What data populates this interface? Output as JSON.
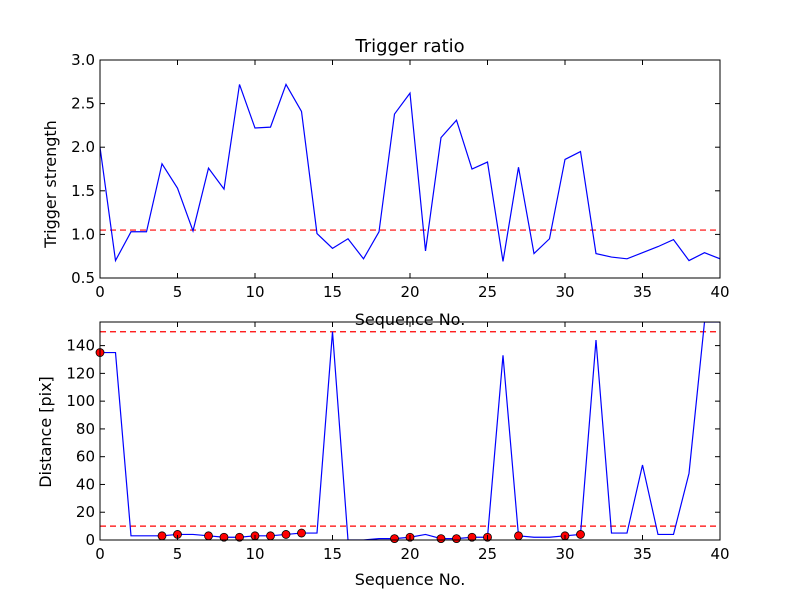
{
  "chart_data": [
    {
      "type": "line",
      "title": "Trigger ratio",
      "xlabel": "Sequence No.",
      "ylabel": "Trigger strength",
      "xlim": [
        0,
        40
      ],
      "ylim": [
        0.5,
        3.0
      ],
      "xticks": [
        "0",
        "5",
        "10",
        "15",
        "20",
        "25",
        "30",
        "35",
        "40"
      ],
      "yticks": [
        "0.5",
        "1.0",
        "1.5",
        "2.0",
        "2.5",
        "3.0"
      ],
      "grid": false,
      "series": [
        {
          "color": "#0000ff",
          "x": [
            0,
            1,
            2,
            3,
            4,
            5,
            6,
            7,
            8,
            9,
            10,
            11,
            12,
            13,
            14,
            15,
            16,
            17,
            18,
            19,
            20,
            21,
            22,
            23,
            24,
            25,
            26,
            27,
            28,
            29,
            30,
            31,
            32,
            33,
            34,
            35,
            36,
            37,
            38,
            39,
            40
          ],
          "y": [
            2.0,
            0.7,
            1.03,
            1.03,
            1.81,
            1.53,
            1.04,
            1.76,
            1.52,
            2.72,
            2.22,
            2.23,
            2.72,
            2.41,
            1.01,
            0.84,
            0.95,
            0.72,
            1.03,
            2.38,
            2.62,
            0.81,
            2.11,
            2.31,
            1.75,
            1.83,
            0.69,
            1.77,
            0.78,
            0.95,
            1.86,
            1.95,
            0.78,
            0.74,
            0.72,
            0.79,
            0.86,
            0.94,
            0.7,
            0.79,
            0.72
          ]
        }
      ],
      "threshold_lines": [
        {
          "y": 1.05,
          "color": "#ff0000",
          "style": "dashed"
        }
      ]
    },
    {
      "type": "line",
      "title": "",
      "xlabel": "Sequence No.",
      "ylabel": "Distance [pix]",
      "xlim": [
        0,
        40
      ],
      "ylim": [
        0,
        157
      ],
      "xticks": [
        "0",
        "5",
        "10",
        "15",
        "20",
        "25",
        "30",
        "35",
        "40"
      ],
      "yticks": [
        "0",
        "20",
        "40",
        "60",
        "80",
        "100",
        "120",
        "140"
      ],
      "grid": false,
      "series": [
        {
          "color": "#0000ff",
          "x": [
            0,
            1,
            2,
            3,
            4,
            5,
            6,
            7,
            8,
            9,
            10,
            11,
            12,
            13,
            14,
            15,
            16,
            17,
            18,
            19,
            20,
            21,
            22,
            23,
            24,
            25,
            26,
            27,
            28,
            29,
            30,
            31,
            32,
            33,
            34,
            35,
            36,
            37,
            38,
            39,
            40
          ],
          "y": [
            135,
            135,
            3,
            3,
            3,
            4,
            4,
            3,
            2,
            2,
            3,
            3,
            4,
            5,
            5,
            150,
            0,
            0,
            1,
            1,
            2,
            4,
            1,
            1,
            2,
            2,
            133,
            3,
            2,
            2,
            3,
            4,
            144,
            5,
            5,
            54,
            4,
            4,
            48,
            157,
            157
          ]
        }
      ],
      "markers": {
        "color": "#ff0000",
        "x": [
          0,
          4,
          5,
          7,
          8,
          9,
          10,
          11,
          12,
          13,
          19,
          20,
          22,
          23,
          24,
          25,
          27,
          30,
          31
        ],
        "y": [
          135,
          3,
          4,
          3,
          2,
          2,
          3,
          3,
          4,
          5,
          1,
          2,
          1,
          1,
          2,
          2,
          3,
          3,
          4
        ]
      },
      "threshold_lines": [
        {
          "y": 150,
          "color": "#ff0000",
          "style": "dashed"
        },
        {
          "y": 10,
          "color": "#ff0000",
          "style": "dashed"
        }
      ]
    }
  ]
}
